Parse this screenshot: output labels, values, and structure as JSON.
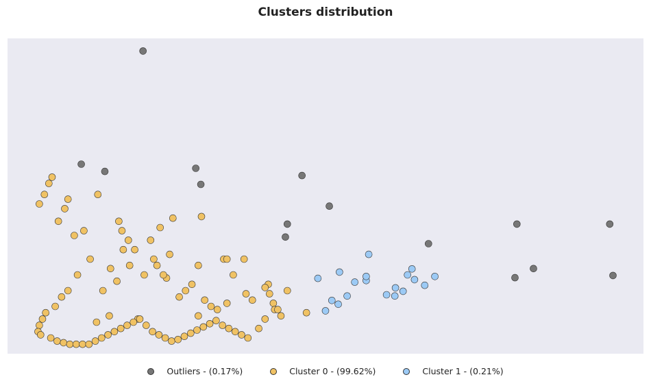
{
  "chart_data": {
    "type": "scatter",
    "title": "Clusters distribution",
    "xlabel": "",
    "ylabel": "",
    "xlim": [
      0,
      1000
    ],
    "ylim": [
      0,
      1000
    ],
    "grid": false,
    "legend_placement": "bottom-center",
    "background_color": "#eaeaf2",
    "series": [
      {
        "name": "Outliers - (0.17%)",
        "color": "#777777",
        "x": [
          213,
          116,
          153,
          296,
          304,
          463,
          506,
          440,
          437,
          662,
          801,
          947,
          798,
          827,
          952
        ],
        "y": [
          960,
          601,
          578,
          588,
          537,
          565,
          468,
          411,
          370,
          349,
          411,
          411,
          241,
          270,
          248
        ]
      },
      {
        "name": "Cluster 0 - (99.62%)",
        "color": "#f0c264",
        "x": [
          65,
          58,
          90,
          142,
          70,
          50,
          95,
          105,
          120,
          80,
          260,
          305,
          240,
          255,
          175,
          180,
          190,
          300,
          340,
          345,
          410,
          440,
          412,
          418,
          470,
          420,
          430,
          375,
          405,
          372,
          355,
          345,
          385,
          330,
          290,
          270,
          250,
          230,
          215,
          200,
          310,
          320,
          300,
          280,
          205,
          160,
          150,
          140,
          130,
          110,
          95,
          85,
          75,
          60,
          55,
          50,
          48,
          52,
          68,
          78,
          88,
          98,
          108,
          118,
          128,
          138,
          148,
          158,
          168,
          178,
          188,
          198,
          208,
          218,
          228,
          238,
          248,
          258,
          268,
          278,
          288,
          298,
          308,
          318,
          328,
          338,
          348,
          358,
          368,
          378,
          395,
          405,
          425,
          225,
          235,
          245,
          182,
          192,
          162,
          172
        ],
        "y": [
          540,
          505,
          460,
          505,
          560,
          475,
          490,
          375,
          390,
          420,
          430,
          435,
          400,
          315,
          420,
          390,
          360,
          280,
          300,
          300,
          220,
          200,
          190,
          160,
          130,
          140,
          120,
          190,
          210,
          300,
          250,
          160,
          170,
          140,
          220,
          180,
          240,
          300,
          250,
          330,
          170,
          150,
          120,
          200,
          110,
          120,
          200,
          100,
          300,
          250,
          200,
          180,
          150,
          130,
          110,
          90,
          70,
          60,
          50,
          40,
          35,
          30,
          30,
          30,
          30,
          40,
          50,
          60,
          70,
          80,
          90,
          100,
          110,
          90,
          70,
          60,
          50,
          40,
          45,
          55,
          65,
          75,
          85,
          95,
          105,
          90,
          80,
          70,
          60,
          50,
          80,
          110,
          140,
          360,
          280,
          250,
          330,
          280,
          270,
          230
        ]
      },
      {
        "name": "Cluster 1 - (0.21%)",
        "color": "#9ccaf5",
        "x": [
          568,
          488,
          522,
          534,
          520,
          546,
          564,
          564,
          610,
          629,
          622,
          609,
          596,
          636,
          640,
          656,
          672,
          500,
          510
        ],
        "y": [
          315,
          239,
          259,
          183,
          157,
          227,
          232,
          245,
          209,
          250,
          198,
          183,
          187,
          269,
          235,
          217,
          245,
          136,
          169
        ]
      }
    ]
  }
}
